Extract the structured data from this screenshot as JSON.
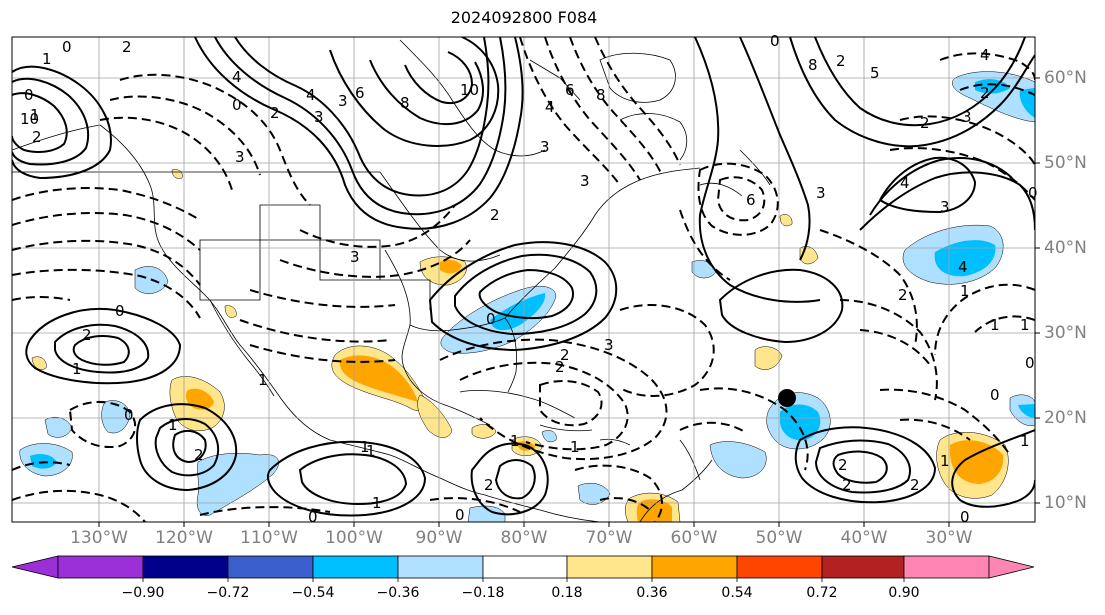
{
  "title": "2024092800 F084",
  "lon_labels": [
    "130°W",
    "120°W",
    "110°W",
    "100°W",
    "90°W",
    "80°W",
    "70°W",
    "60°W",
    "50°W",
    "40°W",
    "30°W"
  ],
  "lat_labels": [
    "60°N",
    "50°N",
    "40°N",
    "30°N",
    "20°N",
    "10°N"
  ],
  "colorbar": {
    "ticks": [
      "−0.90",
      "−0.72",
      "−0.54",
      "−0.36",
      "−0.18",
      "0.18",
      "0.36",
      "0.54",
      "0.72",
      "0.90"
    ],
    "colors": [
      "#9b30d9",
      "#00008b",
      "#3a5fcd",
      "#00bfff",
      "#b0e0ff",
      "#ffffff",
      "#ffe68c",
      "#ffa500",
      "#ff4500",
      "#b22222",
      "#ff85b3"
    ]
  },
  "contour_labels": [
    "0",
    "2",
    "1",
    "4",
    "10",
    "6",
    "8",
    "3",
    "0",
    "2",
    "3",
    "4",
    "0",
    "1",
    "2",
    "6",
    "4",
    "8",
    "10",
    "3",
    "0",
    "3",
    "2",
    "1",
    "0",
    "2",
    "1",
    "0",
    "1",
    "2",
    "3",
    "2",
    "1",
    "0",
    "6",
    "8",
    "2",
    "3",
    "4",
    "5",
    "2",
    "1",
    "0",
    "3",
    "4",
    "2",
    "1",
    "0",
    "2",
    "3",
    "4",
    "1",
    "0",
    "1",
    "2",
    "0",
    "1",
    "2",
    "3",
    "2",
    "1",
    "1",
    "2",
    "3",
    "0",
    "1",
    "2",
    "1",
    "0"
  ]
}
